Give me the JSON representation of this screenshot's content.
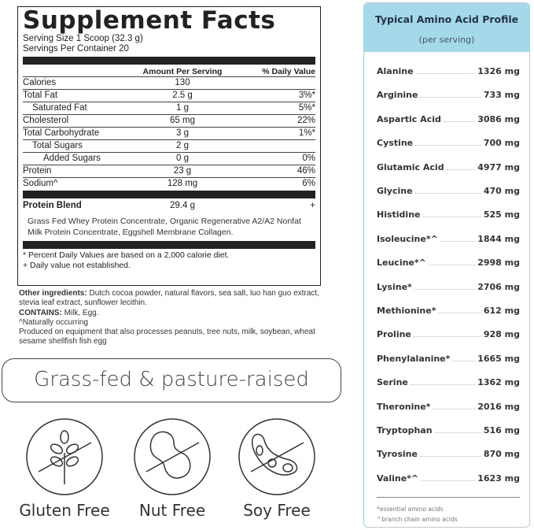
{
  "facts": {
    "title": "Supplement Facts",
    "serving_size": "Serving Size 1 Scoop (32.3 g)",
    "servings": "Servings Per Container 20",
    "col_amount": "Amount Per Serving",
    "col_dv": "% Daily Value",
    "rows": [
      {
        "name": "Calories",
        "amount": "130",
        "dv": "",
        "indent": 0
      },
      {
        "name": "Total Fat",
        "amount": "2.5 g",
        "dv": "3%*",
        "indent": 0
      },
      {
        "name": "Saturated Fat",
        "amount": "1 g",
        "dv": "5%*",
        "indent": 1
      },
      {
        "name": "Cholesterol",
        "amount": "65 mg",
        "dv": "22%",
        "indent": 0
      },
      {
        "name": "Total Carbohydrate",
        "amount": "3 g",
        "dv": "1%*",
        "indent": 0
      },
      {
        "name": "Total Sugars",
        "amount": "2 g",
        "dv": "",
        "indent": 1
      },
      {
        "name": "Added Sugars",
        "amount": "0 g",
        "dv": "0%",
        "indent": 2
      },
      {
        "name": "Protein",
        "amount": "23 g",
        "dv": "46%",
        "indent": 0
      },
      {
        "name": "Sodium^",
        "amount": "128 mg",
        "dv": "6%",
        "indent": 0
      }
    ],
    "blend_name": "Protein Blend",
    "blend_amount": "29.4 g",
    "blend_dv": "+",
    "blend_desc": "Grass Fed Whey Protein Concentrate, Organic Regenerative A2/A2 Nonfat Milk Protein Concentrate, Eggshell Membrane Collagen.",
    "note1": "* Percent Daily Values are based on a 2,000 calorie diet.",
    "note2": "+ Daily value not established."
  },
  "other": {
    "label": "Other ingredients:",
    "text": " Dutch cocoa powder, natural flavors, sea salt, luo han guo extract, stevia leaf extract, sunflower lecithin.",
    "contains_label": "CONTAINS:",
    "contains": " Milk, Egg.",
    "natural": "^Naturally occurring",
    "equipment": "Produced on equipment that also processes peanuts, tree nuts, milk, soybean, wheat  sesame  shellfish  fish  egg"
  },
  "banner": "Grass-fed & pasture-raised",
  "badges": [
    {
      "label": "Gluten Free",
      "icon": "wheat-crossed-icon"
    },
    {
      "label": "Nut Free",
      "icon": "peanut-crossed-icon"
    },
    {
      "label": "Soy Free",
      "icon": "soybean-crossed-icon"
    }
  ],
  "amino": {
    "title": "Typical Amino Acid Profile",
    "subtitle": "(per serving)",
    "accent": "#a4d9ea",
    "items": [
      {
        "name": "Alanine",
        "value": "1326 mg"
      },
      {
        "name": "Arginine",
        "value": "733 mg"
      },
      {
        "name": "Aspartic Acid",
        "value": "3086 mg"
      },
      {
        "name": "Cystine",
        "value": "700 mg"
      },
      {
        "name": "Glutamic Acid",
        "value": "4977 mg"
      },
      {
        "name": "Glycine",
        "value": "470 mg"
      },
      {
        "name": "Histidine",
        "value": "525 mg"
      },
      {
        "name": "Isoleucine*^",
        "value": "1844 mg"
      },
      {
        "name": "Leucine*^",
        "value": "2998 mg"
      },
      {
        "name": "Lysine*",
        "value": "2706 mg"
      },
      {
        "name": "Methionine*",
        "value": "612 mg"
      },
      {
        "name": "Proline",
        "value": "928 mg"
      },
      {
        "name": "Phenylalanine*",
        "value": "1665 mg"
      },
      {
        "name": "Serine",
        "value": "1362 mg"
      },
      {
        "name": "Theronine*",
        "value": "2016 mg"
      },
      {
        "name": "Tryptophan",
        "value": "516 mg"
      },
      {
        "name": "Tyrosine",
        "value": "870 mg"
      },
      {
        "name": "Valine*^",
        "value": "1623 mg"
      }
    ],
    "footnote1": "*essential amino acids",
    "footnote2": "^branch chain amino acids"
  }
}
